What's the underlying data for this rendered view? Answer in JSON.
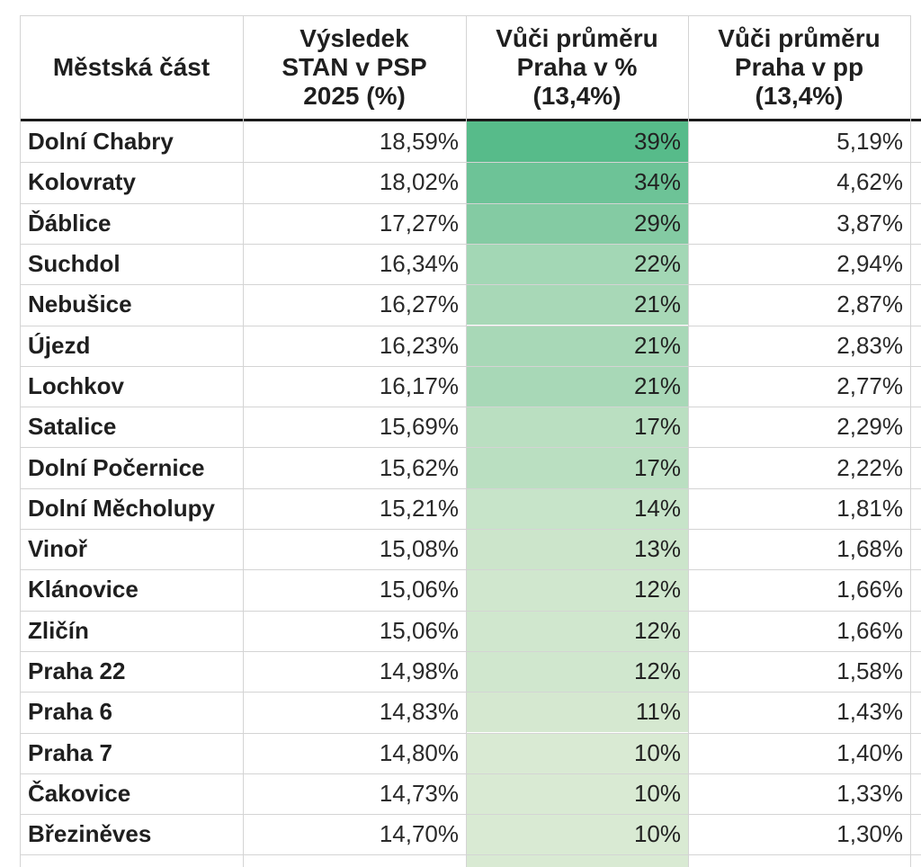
{
  "table": {
    "headers": [
      "Městská část",
      "Výsledek\nSTAN v PSP\n2025 (%)",
      "Vůči průměru\nPraha v %\n(13,4%)",
      "Vůči průměru\nPraha v pp\n(13,4%)"
    ],
    "rows": [
      {
        "name": "Dolní Chabry",
        "result": "18,59%",
        "vs_pct": "39%",
        "vs_pp": "5,19%",
        "vs_pct_value": 39
      },
      {
        "name": "Kolovraty",
        "result": "18,02%",
        "vs_pct": "34%",
        "vs_pp": "4,62%",
        "vs_pct_value": 34
      },
      {
        "name": "Ďáblice",
        "result": "17,27%",
        "vs_pct": "29%",
        "vs_pp": "3,87%",
        "vs_pct_value": 29
      },
      {
        "name": "Suchdol",
        "result": "16,34%",
        "vs_pct": "22%",
        "vs_pp": "2,94%",
        "vs_pct_value": 22
      },
      {
        "name": "Nebušice",
        "result": "16,27%",
        "vs_pct": "21%",
        "vs_pp": "2,87%",
        "vs_pct_value": 21
      },
      {
        "name": "Újezd",
        "result": "16,23%",
        "vs_pct": "21%",
        "vs_pp": "2,83%",
        "vs_pct_value": 21
      },
      {
        "name": "Lochkov",
        "result": "16,17%",
        "vs_pct": "21%",
        "vs_pp": "2,77%",
        "vs_pct_value": 21
      },
      {
        "name": "Satalice",
        "result": "15,69%",
        "vs_pct": "17%",
        "vs_pp": "2,29%",
        "vs_pct_value": 17
      },
      {
        "name": "Dolní Počernice",
        "result": "15,62%",
        "vs_pct": "17%",
        "vs_pp": "2,22%",
        "vs_pct_value": 17
      },
      {
        "name": "Dolní Měcholupy",
        "result": "15,21%",
        "vs_pct": "14%",
        "vs_pp": "1,81%",
        "vs_pct_value": 14
      },
      {
        "name": "Vinoř",
        "result": "15,08%",
        "vs_pct": "13%",
        "vs_pp": "1,68%",
        "vs_pct_value": 13
      },
      {
        "name": "Klánovice",
        "result": "15,06%",
        "vs_pct": "12%",
        "vs_pp": "1,66%",
        "vs_pct_value": 12
      },
      {
        "name": "Zličín",
        "result": "15,06%",
        "vs_pct": "12%",
        "vs_pp": "1,66%",
        "vs_pct_value": 12
      },
      {
        "name": "Praha 22",
        "result": "14,98%",
        "vs_pct": "12%",
        "vs_pp": "1,58%",
        "vs_pct_value": 12
      },
      {
        "name": "Praha 6",
        "result": "14,83%",
        "vs_pct": "11%",
        "vs_pp": "1,43%",
        "vs_pct_value": 11
      },
      {
        "name": "Praha 7",
        "result": "14,80%",
        "vs_pct": "10%",
        "vs_pp": "1,40%",
        "vs_pct_value": 10
      },
      {
        "name": "Čakovice",
        "result": "14,73%",
        "vs_pct": "10%",
        "vs_pp": "1,33%",
        "vs_pct_value": 10
      },
      {
        "name": "Březiněves",
        "result": "14,70%",
        "vs_pct": "10%",
        "vs_pp": "1,30%",
        "vs_pct_value": 10
      }
    ]
  },
  "colors": {
    "heat_high": "#57bb8a",
    "heat_low": "#d9ead3",
    "grid": "#d4d4d4",
    "header_rule": "#1a1a1a",
    "text": "#222222"
  }
}
